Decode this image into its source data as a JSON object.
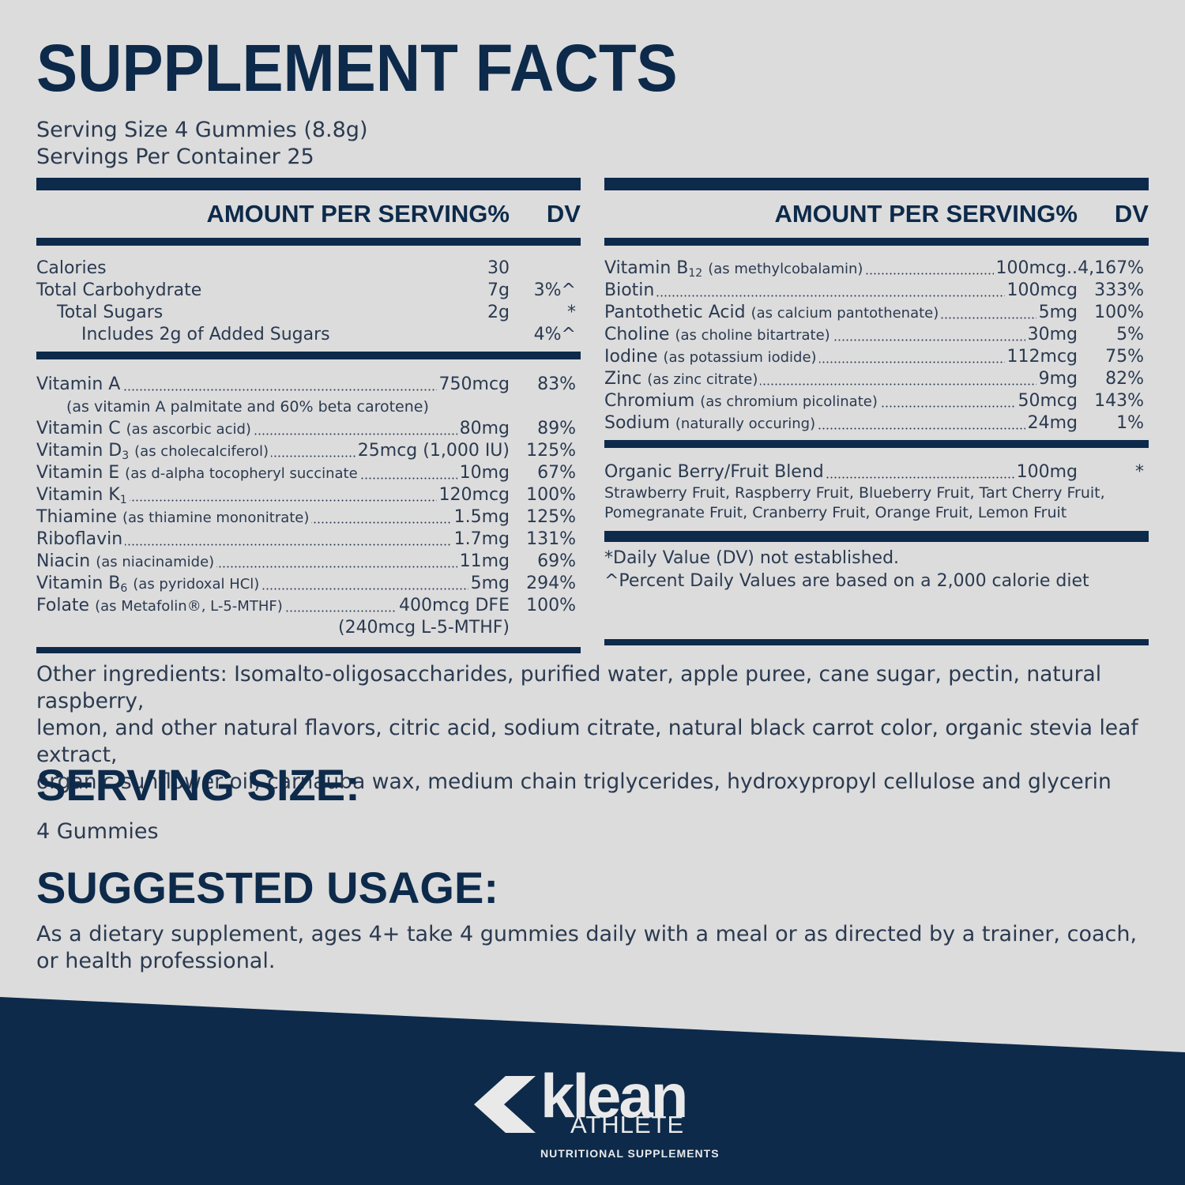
{
  "title": "SUPPLEMENT FACTS",
  "serving_size_line": "Serving Size 4 Gummies (8.8g)",
  "servings_per_container_line": "Servings Per Container 25",
  "table_header": {
    "amount": "AMOUNT PER SERVING%",
    "dv": "DV"
  },
  "left": {
    "macros": [
      {
        "label": "Calories",
        "amount": "30",
        "dv": ""
      },
      {
        "label": "Total Carbohydrate",
        "amount": "7g",
        "dv": "3%^"
      },
      {
        "label": "Total Sugars",
        "amount": "2g",
        "dv": "*"
      },
      {
        "label": "Includes 2g of Added Sugars",
        "amount": "",
        "dv": "4%^"
      }
    ],
    "vitamin_a": {
      "label": "Vitamin A",
      "amount": "750mcg",
      "dv": "83%",
      "note": "(as vitamin A palmitate and 60% beta carotene)"
    },
    "vitamins": [
      {
        "name": "Vitamin C",
        "detail": "(as ascorbic acid)",
        "amount": "80mg",
        "dv": "89%"
      },
      {
        "name": "Vitamin D",
        "sub": "3",
        "detail": "(as cholecalciferol)",
        "amount": "25mcg (1,000 IU)",
        "dv": "125%"
      },
      {
        "name": "Vitamin E",
        "detail": "(as d-alpha tocopheryl succinate",
        "amount": "10mg",
        "dv": "67%"
      },
      {
        "name": "Vitamin K",
        "sub": "1",
        "detail": "",
        "amount": "120mcg",
        "dv": "100%"
      },
      {
        "name": "Thiamine",
        "detail": "(as thiamine mononitrate)",
        "amount": "1.5mg",
        "dv": "125%"
      },
      {
        "name": "Riboflavin",
        "detail": "",
        "amount": "1.7mg",
        "dv": "131%"
      },
      {
        "name": "Niacin",
        "detail": "(as niacinamide)",
        "amount": "11mg",
        "dv": "69%"
      },
      {
        "name": "Vitamin B",
        "sub": "6",
        "detail": "(as pyridoxal HCl)",
        "amount": "5mg",
        "dv": "294%"
      },
      {
        "name": "Folate",
        "detail": "(as Metafolin®, L-5-MTHF)",
        "amount": "400mcg DFE",
        "dv": "100%"
      }
    ],
    "folate_extra": "(240mcg L-5-MTHF)"
  },
  "right": {
    "items": [
      {
        "name": "Vitamin B",
        "sub": "12",
        "detail": "(as methylcobalamin)",
        "amount": "100mcg..",
        "dv": "4,167%"
      },
      {
        "name": "Biotin",
        "detail": "",
        "amount": "100mcg",
        "dv": "333%"
      },
      {
        "name": "Pantothetic Acid",
        "detail": "(as calcium pantothenate)",
        "amount": "5mg",
        "dv": "100%"
      },
      {
        "name": "Choline",
        "detail": "(as choline bitartrate)",
        "amount": "30mg",
        "dv": "5%"
      },
      {
        "name": "Iodine",
        "detail": "(as potassium iodide)",
        "amount": "112mcg",
        "dv": "75%"
      },
      {
        "name": "Zinc",
        "detail": "(as zinc citrate)",
        "amount": "9mg",
        "dv": "82%"
      },
      {
        "name": "Chromium",
        "detail": "(as chromium picolinate)",
        "amount": "50mcg",
        "dv": "143%"
      },
      {
        "name": "Sodium",
        "detail": "(naturally occuring)",
        "amount": "24mg",
        "dv": "1%"
      }
    ],
    "blend": {
      "label": "Organic Berry/Fruit Blend",
      "amount": "100mg",
      "dv": "*"
    },
    "blend_lines": [
      "Strawberry Fruit, Raspberry Fruit, Blueberry Fruit, Tart Cherry Fruit,",
      "Pomegranate Fruit, Cranberry Fruit, Orange Fruit, Lemon Fruit"
    ],
    "footnotes": [
      "*Daily Value (DV) not established.",
      "^Percent Daily Values are based on a 2,000 calorie diet"
    ]
  },
  "other_ingredients_lines": [
    "Other ingredients: Isomalto-oligosaccharides, purified water, apple puree, cane sugar, pectin, natural raspberry,",
    "lemon, and other natural flavors, citric acid, sodium citrate, natural black carrot color, organic stevia leaf extract,",
    "organic sunflower oil, carnauba wax, medium chain triglycerides, hydroxypropyl cellulose and glycerin"
  ],
  "serving_size_heading": "SERVING SIZE:",
  "serving_size_value": "4 Gummies",
  "usage_heading": "SUGGESTED USAGE:",
  "usage_lines": [
    "As a dietary supplement, ages 4+ take 4 gummies daily with a meal or as directed by a trainer, coach,",
    "or health professional."
  ],
  "brand": {
    "word": "klean",
    "sub": "ATHLETE",
    "tagline": "NUTRITIONAL SUPPLEMENTS"
  },
  "colors": {
    "navy": "#0d2a4a",
    "background": "#dcdcdd",
    "text": "#2b3a4f",
    "logo": "#e9e9e9"
  }
}
